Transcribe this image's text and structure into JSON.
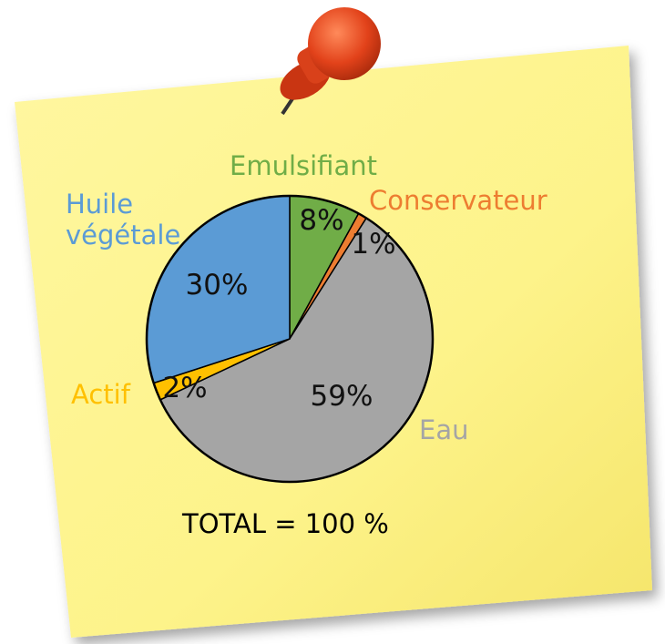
{
  "chart_data": {
    "type": "pie",
    "categories": [
      "Emulsifiant",
      "Conservateur",
      "Eau",
      "Actif",
      "Huile végétale"
    ],
    "values": [
      8,
      1,
      59,
      2,
      30
    ],
    "value_labels": [
      "8%",
      "1%",
      "59%",
      "2%",
      "30%"
    ],
    "colors": [
      "#70ad47",
      "#ed7d31",
      "#a5a5a5",
      "#ffc000",
      "#5b9bd5"
    ],
    "annotation": "TOTAL = 100 %"
  }
}
